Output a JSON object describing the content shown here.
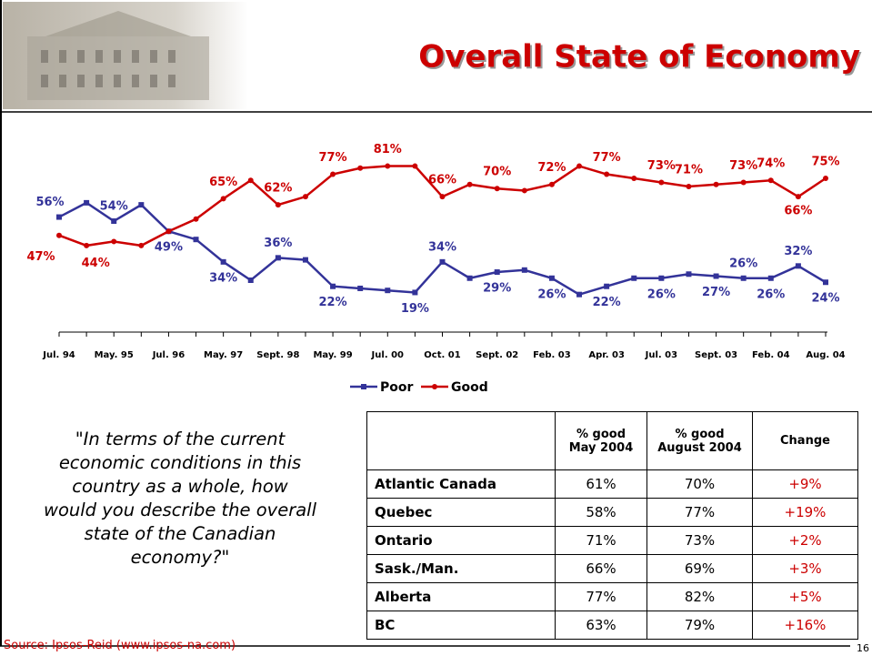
{
  "header": {
    "title": "Overall State of Economy"
  },
  "chart_data": {
    "type": "line",
    "categories": [
      "Jul. 94",
      null,
      "May. 95",
      null,
      "Jul. 96",
      null,
      "May. 97",
      null,
      "Sept. 98",
      null,
      "May. 99",
      null,
      "Jul. 00",
      null,
      "Oct. 01",
      null,
      "Sept. 02",
      null,
      "Feb. 03",
      null,
      "Apr. 03",
      null,
      "Jul. 03",
      null,
      "Sept. 03",
      null,
      "Feb. 04",
      null,
      "Aug. 04"
    ],
    "series": [
      {
        "name": "Poor",
        "color": "#333399",
        "marker": "square",
        "values": [
          56,
          63,
          54,
          62,
          49,
          45,
          34,
          25,
          36,
          35,
          22,
          21,
          20,
          19,
          34,
          26,
          29,
          30,
          26,
          18,
          22,
          26,
          26,
          28,
          27,
          26,
          26,
          32,
          24
        ],
        "value_labels": [
          "56%",
          null,
          "54%",
          null,
          "49%",
          null,
          "34%",
          null,
          "36%",
          null,
          "22%",
          null,
          null,
          "19%",
          "34%",
          null,
          "29%",
          null,
          "26%",
          null,
          "22%",
          null,
          "26%",
          null,
          "27%",
          "26%",
          "26%",
          "32%",
          "24%"
        ]
      },
      {
        "name": "Good",
        "color": "#cc0000",
        "marker": "circle",
        "values": [
          47,
          42,
          44,
          42,
          49,
          55,
          65,
          74,
          62,
          66,
          77,
          80,
          81,
          81,
          66,
          72,
          70,
          69,
          72,
          81,
          77,
          75,
          73,
          71,
          72,
          73,
          74,
          66,
          75
        ],
        "value_labels": [
          "47%",
          null,
          "44%",
          null,
          null,
          null,
          "65%",
          null,
          "62%",
          null,
          "77%",
          null,
          "81%",
          null,
          "66%",
          null,
          "70%",
          null,
          "72%",
          null,
          "77%",
          null,
          "73%",
          "71%",
          null,
          "73%",
          "74%",
          "66%",
          "75%"
        ]
      }
    ],
    "legend": "bottom"
  },
  "quote": "\"In terms of the current economic conditions in this country as a whole, how would you describe the overall state of the Canadian economy?\"",
  "table": {
    "header": [
      [
        "% good",
        "May 2004"
      ],
      [
        "% good",
        "August 2004"
      ],
      [
        "Change"
      ]
    ],
    "rows": [
      [
        "Atlantic Canada",
        "61%",
        "70%",
        "+9%"
      ],
      [
        "Quebec",
        "58%",
        "77%",
        "+19%"
      ],
      [
        "Ontario",
        "71%",
        "73%",
        "+2%"
      ],
      [
        "Sask./Man.",
        "66%",
        "69%",
        "+3%"
      ],
      [
        "Alberta",
        "77%",
        "82%",
        "+5%"
      ],
      [
        "BC",
        "63%",
        "79%",
        "+16%"
      ]
    ]
  },
  "source": "Source: Ipsos-Reid (www.ipsos-na.com)",
  "page_number": "16"
}
